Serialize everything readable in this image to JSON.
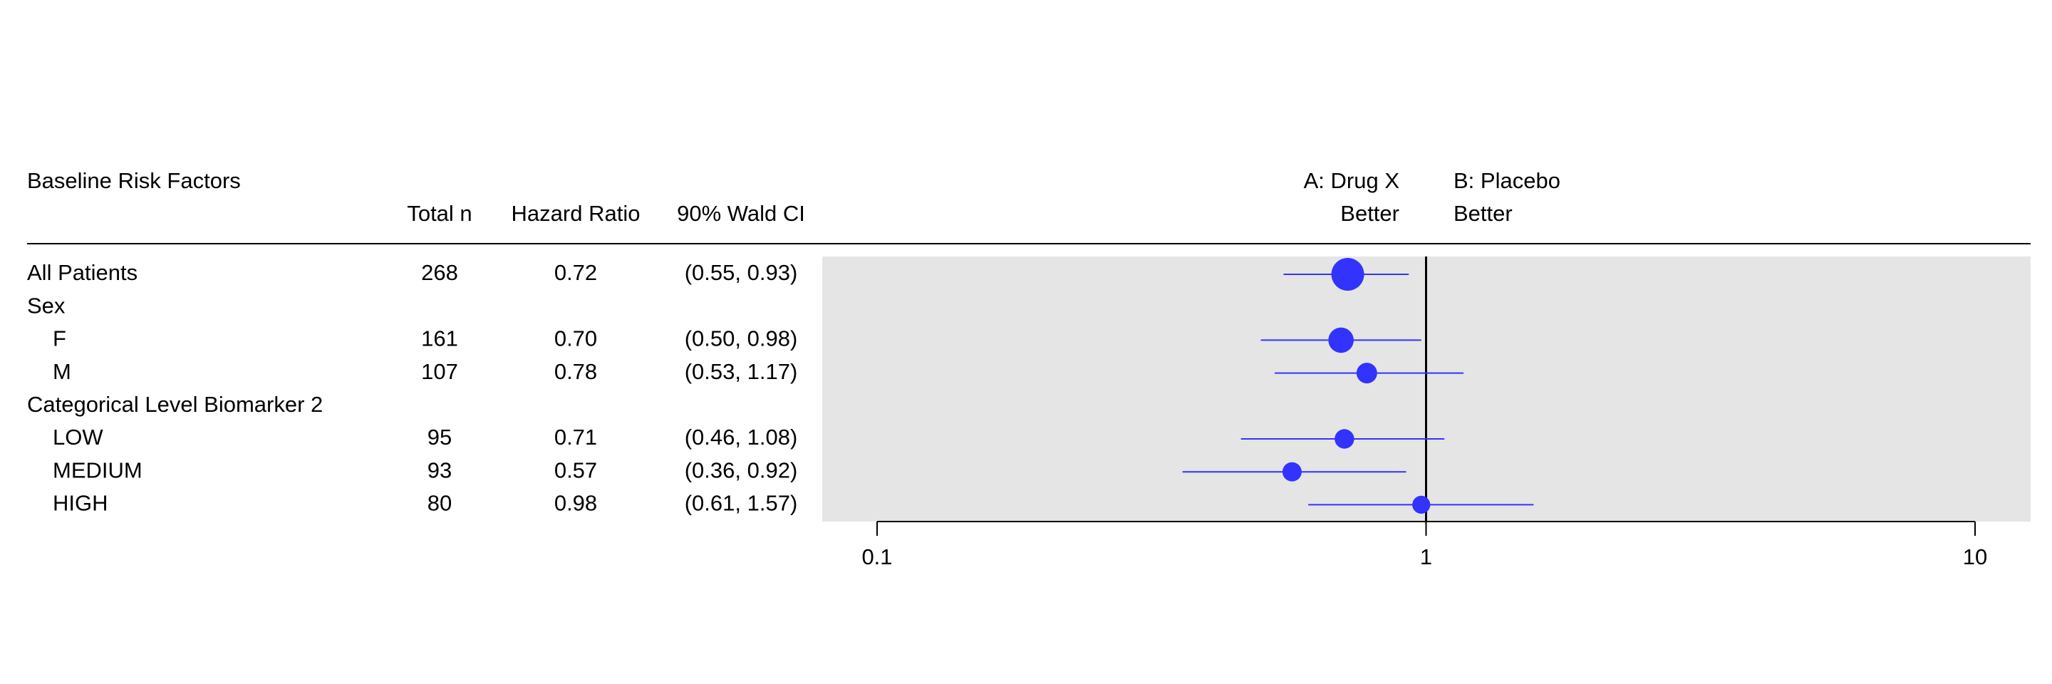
{
  "table": {
    "headers": {
      "factor": "Baseline Risk Factors",
      "n": "Total n",
      "hr": "Hazard Ratio",
      "ci": "90% Wald CI",
      "left_arm_line1": "A: Drug X",
      "left_arm_line2": "Better",
      "right_arm_line1": "B: Placebo",
      "right_arm_line2": "Better"
    },
    "rows": [
      {
        "label": "All Patients",
        "indent": false,
        "n": "268",
        "hr": "0.72",
        "ci": "(0.55, 0.93)"
      },
      {
        "label": "Sex",
        "indent": false,
        "n": "",
        "hr": "",
        "ci": ""
      },
      {
        "label": "F",
        "indent": true,
        "n": "161",
        "hr": "0.70",
        "ci": "(0.50, 0.98)"
      },
      {
        "label": "M",
        "indent": true,
        "n": "107",
        "hr": "0.78",
        "ci": "(0.53, 1.17)"
      },
      {
        "label": "Categorical Level Biomarker 2",
        "indent": false,
        "n": "",
        "hr": "",
        "ci": ""
      },
      {
        "label": "LOW",
        "indent": true,
        "n": "95",
        "hr": "0.71",
        "ci": "(0.46, 1.08)"
      },
      {
        "label": "MEDIUM",
        "indent": true,
        "n": "93",
        "hr": "0.57",
        "ci": "(0.36, 0.92)"
      },
      {
        "label": "HIGH",
        "indent": true,
        "n": "80",
        "hr": "0.98",
        "ci": "(0.61, 1.57)"
      }
    ]
  },
  "chart_data": {
    "type": "scatter",
    "subtype": "forest",
    "x_scale": "log",
    "xlim": [
      0.1,
      10
    ],
    "x_ticks": [
      0.1,
      1,
      10
    ],
    "x_tick_labels": [
      "0.1",
      "1",
      "10"
    ],
    "reference_line": 1,
    "panel_background": "#e5e5e5",
    "point_color": "#3333ff",
    "points": [
      {
        "row": "All Patients",
        "estimate": 0.72,
        "lower": 0.55,
        "upper": 0.93,
        "n": 268
      },
      {
        "row": "F",
        "estimate": 0.7,
        "lower": 0.5,
        "upper": 0.98,
        "n": 161
      },
      {
        "row": "M",
        "estimate": 0.78,
        "lower": 0.53,
        "upper": 1.17,
        "n": 107
      },
      {
        "row": "LOW",
        "estimate": 0.71,
        "lower": 0.46,
        "upper": 1.08,
        "n": 95
      },
      {
        "row": "MEDIUM",
        "estimate": 0.57,
        "lower": 0.36,
        "upper": 0.92,
        "n": 93
      },
      {
        "row": "HIGH",
        "estimate": 0.98,
        "lower": 0.61,
        "upper": 1.57,
        "n": 80
      }
    ]
  }
}
